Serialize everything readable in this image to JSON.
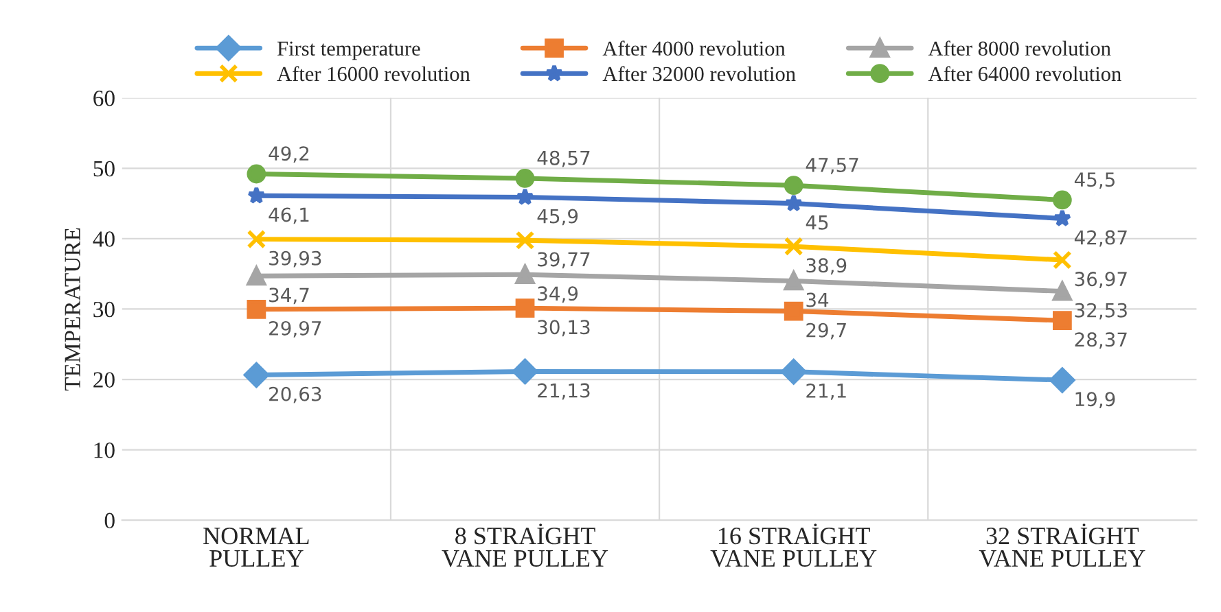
{
  "chart_data": {
    "type": "line",
    "ylabel": "TEMPERATURE",
    "categories": [
      "NORMAL\nPULLEY",
      "8 STRAİGHT\nVANE PULLEY",
      "16 STRAİGHT\nVANE PULLEY",
      "32 STRAİGHT\nVANE PULLEY"
    ],
    "ylim": [
      0,
      60
    ],
    "yticks": [
      0,
      10,
      20,
      30,
      40,
      50,
      60
    ],
    "grid": "y",
    "legend": "top",
    "series": [
      {
        "name": "First temperature",
        "color": "#5b9bd5",
        "marker": "diamond",
        "values": [
          20.63,
          21.13,
          21.1,
          19.9
        ],
        "value_labels": [
          "20,63",
          "21,13",
          "21,1",
          "19,9"
        ]
      },
      {
        "name": "After 4000 revolution",
        "color": "#ed7d31",
        "marker": "square",
        "values": [
          29.97,
          30.13,
          29.7,
          28.37
        ],
        "value_labels": [
          "29,97",
          "30,13",
          "29,7",
          "28,37"
        ]
      },
      {
        "name": "After 8000 revolution",
        "color": "#a5a5a5",
        "marker": "triangle",
        "values": [
          34.7,
          34.9,
          34,
          32.53
        ],
        "value_labels": [
          "34,7",
          "34,9",
          "34",
          "32,53"
        ]
      },
      {
        "name": "After 16000 revolution",
        "color": "#ffc000",
        "marker": "cross",
        "values": [
          39.93,
          39.77,
          38.9,
          36.97
        ],
        "value_labels": [
          "39,93",
          "39,77",
          "38,9",
          "36,97"
        ]
      },
      {
        "name": "After 32000 revolution",
        "color": "#4472c4",
        "marker": "star",
        "values": [
          46.1,
          45.9,
          45,
          42.87
        ],
        "value_labels": [
          "46,1",
          "45,9",
          "45",
          "42,87"
        ]
      },
      {
        "name": "After 64000 revolution",
        "color": "#70ad47",
        "marker": "circle",
        "values": [
          49.2,
          48.57,
          47.57,
          45.5
        ],
        "value_labels": [
          "49,2",
          "48,57",
          "47,57",
          "45,5"
        ]
      }
    ]
  }
}
